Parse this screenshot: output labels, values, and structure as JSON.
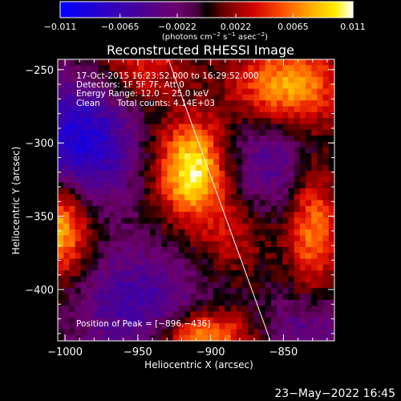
{
  "chart_data": {
    "type": "heatmap",
    "title": "Reconstructed RHESSI Image",
    "xlabel": "Heliocentric X (arcsec)",
    "ylabel": "Heliocentric Y (arcsec)",
    "xlim": [
      -1005,
      -815
    ],
    "ylim": [
      -435,
      -243
    ],
    "x_ticks": [
      -1000,
      -950,
      -900,
      -850
    ],
    "x_tick_labels": [
      "−1000",
      "−950",
      "−900",
      "−850"
    ],
    "y_ticks": [
      -250,
      -300,
      -350,
      -400
    ],
    "y_tick_labels": [
      "−250",
      "−300",
      "−350",
      "−400"
    ],
    "grid": false,
    "colorbar": {
      "range": [
        -0.011,
        0.011
      ],
      "ticks": [
        -0.011,
        -0.0065,
        -0.0022,
        0.0022,
        0.0065,
        0.011
      ],
      "tick_labels": [
        "−0.011",
        "−0.0065",
        "−0.0022",
        "0.0022",
        "0.0065",
        "0.011"
      ],
      "units_main": "(photons cm",
      "units_exp1": "−2",
      "units_mid1": " s",
      "units_exp2": "−1",
      "units_mid2": " asec",
      "units_exp3": "−2",
      "units_end": ")"
    },
    "info": {
      "time_range": "17-Oct-2015 16:23:52.000 to 16:29:52.000",
      "detectors": "Detectors: 1F 5F 7F, Att 0",
      "energy_range": "Energy Range: 12.0 − 25.0 keV",
      "clean_label": "Clean",
      "total_counts": "Total counts: 4.14E+03",
      "peak": "Position of Peak = [−896,−436]"
    },
    "limb_line": {
      "x1": -929,
      "y1": -243,
      "x2": -859,
      "y2": -435
    },
    "sources": [
      {
        "x": -912,
        "y": -318,
        "amp": 0.0105,
        "sx": 17,
        "sy": 23
      },
      {
        "x": -1004,
        "y": -357,
        "amp": 0.0092,
        "sx": 15,
        "sy": 24
      },
      {
        "x": -845,
        "y": -262,
        "amp": 0.0082,
        "sx": 26,
        "sy": 19
      },
      {
        "x": -904,
        "y": -432,
        "amp": 0.0082,
        "sx": 22,
        "sy": 12
      },
      {
        "x": -828,
        "y": -358,
        "amp": 0.0068,
        "sx": 12,
        "sy": 32
      },
      {
        "x": -947,
        "y": -249,
        "amp": 0.0045,
        "sx": 20,
        "sy": 16
      },
      {
        "x": -885,
        "y": -362,
        "amp": 0.0032,
        "sx": 18,
        "sy": 20
      },
      {
        "x": -990,
        "y": -300,
        "amp": -0.0092,
        "sx": 26,
        "sy": 30
      },
      {
        "x": -950,
        "y": -410,
        "amp": -0.0058,
        "sx": 30,
        "sy": 28
      },
      {
        "x": -857,
        "y": -313,
        "amp": -0.0046,
        "sx": 22,
        "sy": 24
      },
      {
        "x": -830,
        "y": -430,
        "amp": -0.0042,
        "sx": 22,
        "sy": 22
      }
    ]
  },
  "footer": {
    "date": "23−May−2022 16:45"
  }
}
